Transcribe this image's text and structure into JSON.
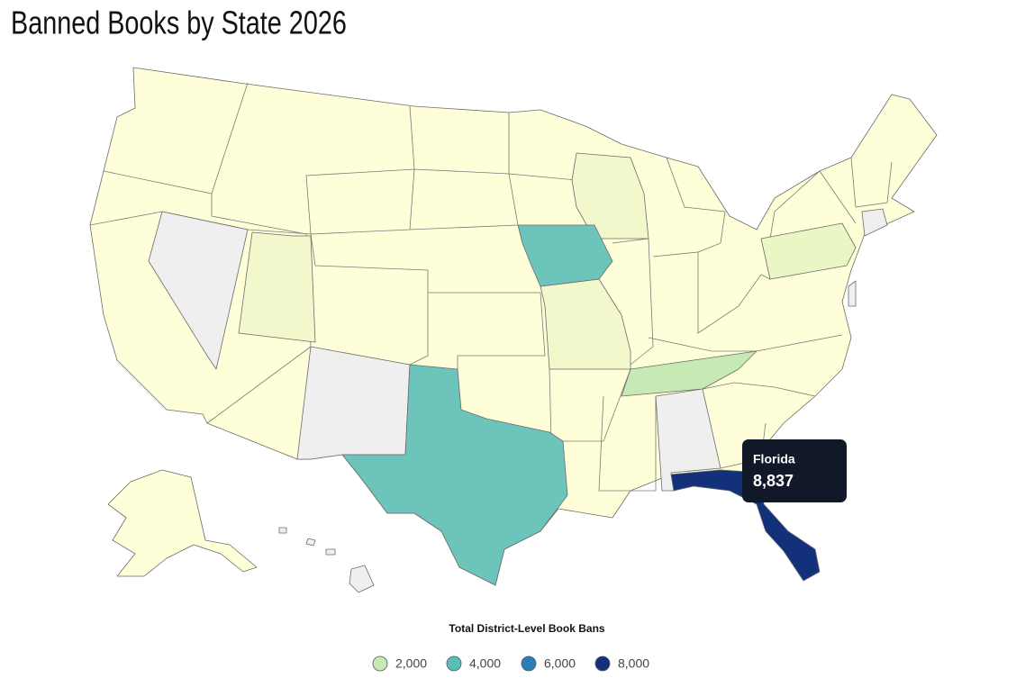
{
  "title": "Banned Books by State 2026",
  "tooltip": {
    "state": "Florida",
    "value": {
      "value": 8837,
      "label": "8,837"
    }
  },
  "legend": {
    "title": "Total District-Level Book Bans",
    "items": [
      {
        "value": 2000,
        "label": "2,000",
        "color": "#c7e9b4"
      },
      {
        "value": 4000,
        "label": "4,000",
        "color": "#5cbfb7"
      },
      {
        "value": 6000,
        "label": "6,000",
        "color": "#2a7fb8"
      },
      {
        "value": 8000,
        "label": "8,000",
        "color": "#13307a"
      }
    ]
  }
}
